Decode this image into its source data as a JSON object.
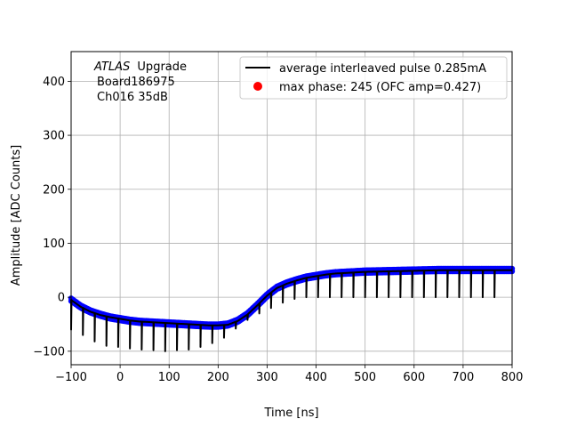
{
  "chart_data": {
    "type": "scatter",
    "xlabel": "Time [ns]",
    "ylabel": "Amplitude [ADC Counts]",
    "xlim": [
      -100,
      800
    ],
    "ylim": [
      -125,
      455
    ],
    "xticks": [
      -100,
      0,
      100,
      200,
      300,
      400,
      500,
      600,
      700,
      800
    ],
    "yticks": [
      -100,
      0,
      100,
      200,
      300,
      400
    ],
    "xtick_labels": [
      "−100",
      "0",
      "100",
      "200",
      "300",
      "400",
      "500",
      "600",
      "700",
      "800"
    ],
    "ytick_labels": [
      "−100",
      "0",
      "100",
      "200",
      "300",
      "400"
    ],
    "grid": true,
    "legend_position": "upper right",
    "annotation": {
      "atlas": "ATLAS",
      "upgrade": "Upgrade",
      "board": "Board186975",
      "channel": "Ch016 35dB"
    },
    "series": [
      {
        "name": "average interleaved pulse 0.285mA",
        "kind": "line",
        "color": "#000000",
        "sample_spacing": 24,
        "spike_values": [
          -60,
          -70,
          -82,
          -90,
          -92,
          -95,
          -97,
          -98,
          -100,
          -98,
          -97,
          -92,
          -85,
          -75,
          -58,
          -42,
          -30,
          -20,
          -10,
          -3,
          0,
          0,
          0,
          0,
          0,
          0,
          0,
          0,
          0,
          0,
          0,
          0,
          0,
          0,
          0,
          0,
          0
        ],
        "x": [
          -100,
          -80,
          -60,
          -40,
          -20,
          0,
          20,
          40,
          60,
          80,
          100,
          120,
          140,
          160,
          180,
          200,
          220,
          240,
          260,
          280,
          300,
          320,
          340,
          360,
          380,
          400,
          420,
          440,
          460,
          480,
          500,
          550,
          600,
          650,
          700,
          750,
          800
        ],
        "y": [
          -5,
          -18,
          -27,
          -33,
          -37,
          -40,
          -43,
          -45,
          -46,
          -47,
          -48,
          -49,
          -50,
          -51,
          -52,
          -52,
          -51,
          -44,
          -32,
          -15,
          3,
          17,
          25,
          31,
          36,
          39,
          42,
          44,
          45,
          46,
          47,
          48,
          49,
          50,
          50,
          50,
          50
        ]
      },
      {
        "name": "",
        "kind": "scatter",
        "color": "#0000ff",
        "x": [
          -100,
          -80,
          -60,
          -40,
          -20,
          0,
          20,
          40,
          60,
          80,
          100,
          120,
          140,
          160,
          180,
          200,
          220,
          240,
          260,
          280,
          300,
          320,
          340,
          360,
          380,
          400,
          420,
          440,
          460,
          480,
          500,
          550,
          600,
          650,
          700,
          750,
          800
        ],
        "y": [
          -2,
          -15,
          -24,
          -30,
          -35,
          -38,
          -41,
          -43,
          -44,
          -45,
          -46,
          -47,
          -48,
          -49,
          -50,
          -50,
          -48,
          -41,
          -29,
          -12,
          6,
          20,
          28,
          34,
          39,
          42,
          45,
          47,
          48,
          49,
          50,
          51,
          52,
          53,
          53,
          53,
          53
        ]
      },
      {
        "name": "max phase: 245 (OFC amp=0.427)",
        "kind": "point",
        "color": "#ff0000",
        "x": [],
        "y": []
      }
    ]
  }
}
